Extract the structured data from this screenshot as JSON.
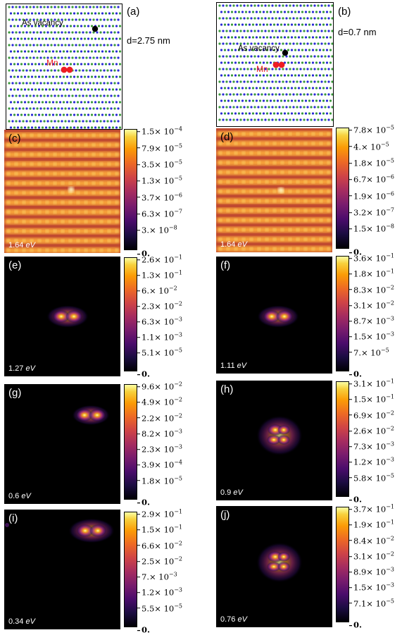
{
  "lattice_panels": [
    {
      "id": "a",
      "letter": "(a)",
      "distance": "d=2.75 nm",
      "vacancy_label": "As vacancy",
      "mn_label": "Mn"
    },
    {
      "id": "b",
      "letter": "(b)",
      "distance": "d=0.7 nm",
      "vacancy_label": "As vacancy",
      "mn_label": "Mn"
    }
  ],
  "maps": [
    {
      "id": "c",
      "letter": "(c)",
      "energy": "1.64",
      "unit": "eV",
      "colorbar_ticks": [
        "1.5 × 10^-4",
        "7.9 × 10^-5",
        "3.5 × 10^-5",
        "1.3 × 10^-5",
        "3.7 × 10^-6",
        "6.3 × 10^-7",
        "3. × 10^-8",
        "0."
      ]
    },
    {
      "id": "d",
      "letter": "(d)",
      "energy": "1.64",
      "unit": "eV",
      "colorbar_ticks": [
        "7.8 × 10^-5",
        "4. × 10^-5",
        "1.8 × 10^-5",
        "6.7 × 10^-6",
        "1.9 × 10^-6",
        "3.2 × 10^-7",
        "1.5 × 10^-8",
        "0."
      ]
    },
    {
      "id": "e",
      "letter": "(e)",
      "energy": "1.27",
      "unit": "eV",
      "colorbar_ticks": [
        "2.6 × 10^-1",
        "1.3 × 10^-1",
        "6. × 10^-2",
        "2.3 × 10^-2",
        "6.3 × 10^-3",
        "1.1 × 10^-3",
        "5.1 × 10^-5",
        "0."
      ]
    },
    {
      "id": "f",
      "letter": "(f)",
      "energy": "1.11",
      "unit": "eV",
      "colorbar_ticks": [
        "3.6 × 10^-1",
        "1.8 × 10^-1",
        "8.3 × 10^-2",
        "3.1 × 10^-2",
        "8.7 × 10^-3",
        "1.5 × 10^-3",
        "7. × 10^-5",
        "0."
      ]
    },
    {
      "id": "g",
      "letter": "(g)",
      "energy": "0.6",
      "unit": "eV",
      "colorbar_ticks": [
        "9.6 × 10^-2",
        "4.9 × 10^-2",
        "2.2 × 10^-2",
        "8.2 × 10^-3",
        "2.3 × 10^-3",
        "3.9 × 10^-4",
        "1.8 × 10^-5",
        "0."
      ]
    },
    {
      "id": "h",
      "letter": "(h)",
      "energy": "0.9",
      "unit": "eV",
      "colorbar_ticks": [
        "3.1 × 10^-1",
        "1.5 × 10^-1",
        "6.9 × 10^-2",
        "2.6 × 10^-2",
        "7.3 × 10^-3",
        "1.2 × 10^-3",
        "5.8 × 10^-5",
        "0."
      ]
    },
    {
      "id": "i",
      "letter": "(i)",
      "energy": "0.34",
      "unit": "eV",
      "colorbar_ticks": [
        "2.9 × 10^-1",
        "1.5 × 10^-1",
        "6.6 × 10^-2",
        "2.5 × 10^-2",
        "7. × 10^-3",
        "1.2 × 10^-3",
        "5.5 × 10^-5",
        "0."
      ]
    },
    {
      "id": "j",
      "letter": "(j)",
      "energy": "0.76",
      "unit": "eV",
      "colorbar_ticks": [
        "3.7 × 10^-1",
        "1.9 × 10^-1",
        "8.4 × 10^-2",
        "3.1 × 10^-2",
        "8.9 × 10^-3",
        "1.5 × 10^-3",
        "7.1 × 10^-5",
        "0."
      ]
    }
  ],
  "colors": {
    "ga_atom": "#3a9a3a",
    "as_atom": "#2a2ad8",
    "mn_atom": "#ee1c24",
    "vacancy": "#000000",
    "mn_label": "#ee2222"
  }
}
